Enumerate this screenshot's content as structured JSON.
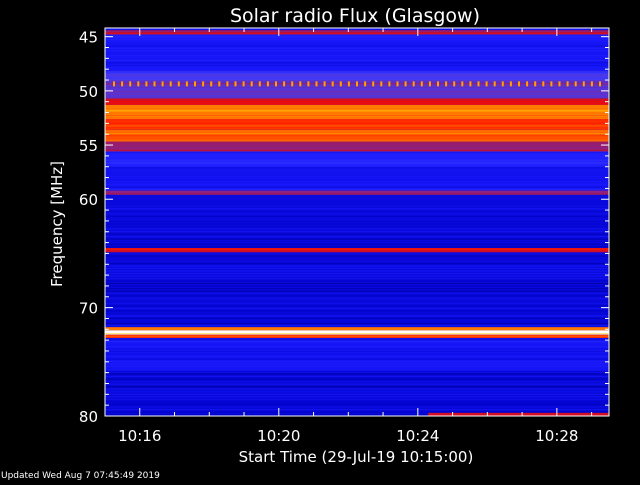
{
  "chart_data": {
    "type": "heatmap",
    "title": "Solar radio Flux (Glasgow)",
    "xlabel": "Start Time (29-Jul-19 10:15:00)",
    "ylabel": "Frequency [MHz]",
    "x_tick_labels": [
      "10:16",
      "10:20",
      "10:24",
      "10:28"
    ],
    "x_tick_minutes": [
      1,
      5,
      9,
      13
    ],
    "xlim_minutes": [
      0,
      14.5
    ],
    "y_tick_labels": [
      "45",
      "50",
      "55",
      "60",
      "70",
      "80"
    ],
    "y_tick_values": [
      45,
      50,
      55,
      60,
      70,
      80
    ],
    "ylim_mhz": [
      45,
      80
    ],
    "ylim_top_mhz": 44.2,
    "colormap": [
      "#000060",
      "#0000c8",
      "#1a1aff",
      "#3c3cff",
      "#7a2aa0",
      "#b8103a",
      "#ff0a00",
      "#ff5a00",
      "#ffc800",
      "#ffffff"
    ],
    "bands": [
      {
        "mhz": [
          44.4,
          44.8
        ],
        "level": 0.55
      },
      {
        "mhz": [
          44.8,
          45.3
        ],
        "level": 0.25
      },
      {
        "mhz": [
          45.3,
          48.2
        ],
        "level": 0.2
      },
      {
        "mhz": [
          48.2,
          49.2
        ],
        "level": 0.35
      },
      {
        "mhz": [
          49.2,
          49.7
        ],
        "level": 0.42
      },
      {
        "mhz": [
          49.7,
          50.7
        ],
        "level": 0.38
      },
      {
        "mhz": [
          50.7,
          51.3
        ],
        "level": 0.6
      },
      {
        "mhz": [
          51.3,
          52.6
        ],
        "level": 0.82
      },
      {
        "mhz": [
          52.6,
          53.6
        ],
        "level": 0.72
      },
      {
        "mhz": [
          53.6,
          54.7
        ],
        "level": 0.78
      },
      {
        "mhz": [
          54.7,
          55.6
        ],
        "level": 0.5
      },
      {
        "mhz": [
          55.6,
          57.0
        ],
        "level": 0.25
      },
      {
        "mhz": [
          57.0,
          59.2
        ],
        "level": 0.2
      },
      {
        "mhz": [
          59.2,
          59.6
        ],
        "level": 0.48
      },
      {
        "mhz": [
          59.6,
          64.5
        ],
        "level": 0.15
      },
      {
        "mhz": [
          64.5,
          64.9
        ],
        "level": 0.62
      },
      {
        "mhz": [
          64.9,
          71.8
        ],
        "level": 0.15
      },
      {
        "mhz": [
          71.8,
          72.1
        ],
        "level": 0.8
      },
      {
        "mhz": [
          72.1,
          72.5
        ],
        "level": 1.0
      },
      {
        "mhz": [
          72.5,
          72.8
        ],
        "level": 0.72
      },
      {
        "mhz": [
          72.8,
          76.0
        ],
        "level": 0.2
      },
      {
        "mhz": [
          76.0,
          80.0
        ],
        "level": 0.14
      }
    ],
    "dotted_line_mhz": 49.4,
    "late_event": {
      "minutes": [
        9.3,
        14.5
      ],
      "mhz": [
        79.8,
        80.0
      ],
      "level": 0.6
    }
  },
  "footer": {
    "updated": "Updated Wed Aug  7 07:45:49 2019"
  }
}
